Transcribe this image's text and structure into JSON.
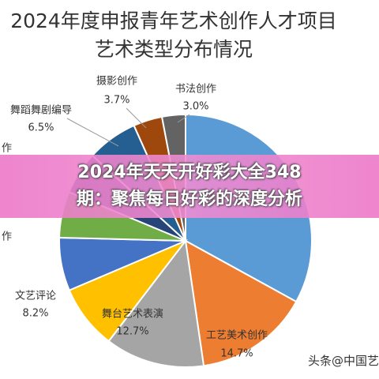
{
  "chart_data": {
    "type": "pie",
    "title": [
      "2024年度申报青年艺术创作人才项目",
      "艺术类型分布情况"
    ],
    "categories": [
      null,
      "工艺美术创作",
      "舞台艺术表演",
      "文艺评论",
      "作",
      null,
      "作",
      "舞蹈舞剧编导",
      "摄影创作",
      "书法创作"
    ],
    "values": [
      33.0,
      14.7,
      12.7,
      8.2,
      6.8,
      5.9,
      5.5,
      6.5,
      3.7,
      3.0
    ],
    "value_labels": [
      null,
      "14.7%",
      "12.7%",
      "8.2%",
      null,
      null,
      null,
      "6.5%",
      "3.7%",
      "3.0%"
    ],
    "colors": [
      "#5b9bd5",
      "#ed7d31",
      "#a5a5a5",
      "#ffc000",
      "#4472c4",
      "#70ad47",
      "#264478",
      "#255e91",
      "#9e480e",
      "#636363"
    ]
  },
  "banner": [
    "2024年天天开好彩大全348",
    "期：聚焦每日好彩的深度分析"
  ],
  "watermark": "头条@中国艺"
}
